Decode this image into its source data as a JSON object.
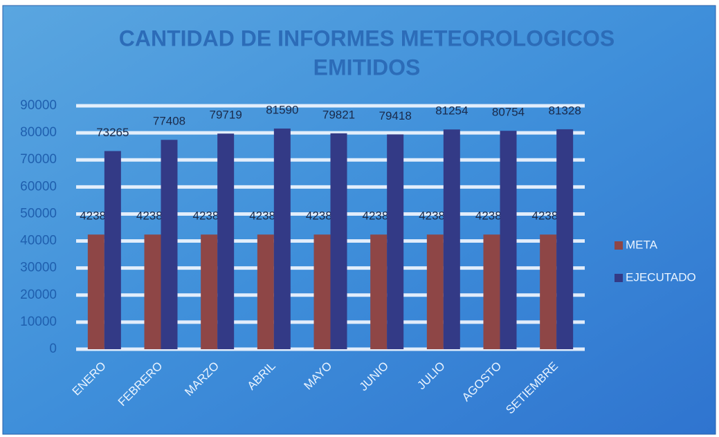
{
  "chart_data": {
    "type": "bar",
    "title": [
      "CANTIDAD DE INFORMES METEOROLOGICOS",
      "EMITIDOS"
    ],
    "categories": [
      "ENERO",
      "FEBRERO",
      "MARZO",
      "ABRIL",
      "MAYO",
      "JUNIO",
      "JULIO",
      "AGOSTO",
      "SETIEMBRE"
    ],
    "series": [
      {
        "name": "META",
        "color": "#8e4646",
        "values": [
          42387,
          42387,
          42387,
          42387,
          42387,
          42387,
          42387,
          42387,
          42387
        ]
      },
      {
        "name": "EJECUTADO",
        "color": "#333a86",
        "values": [
          73265,
          77408,
          79719,
          81590,
          79821,
          79418,
          81254,
          80754,
          81328
        ]
      }
    ],
    "ylim": [
      0,
      90000
    ],
    "yticks": [
      0,
      10000,
      20000,
      30000,
      40000,
      50000,
      60000,
      70000,
      80000,
      90000
    ],
    "grid": true,
    "legend": "right"
  }
}
